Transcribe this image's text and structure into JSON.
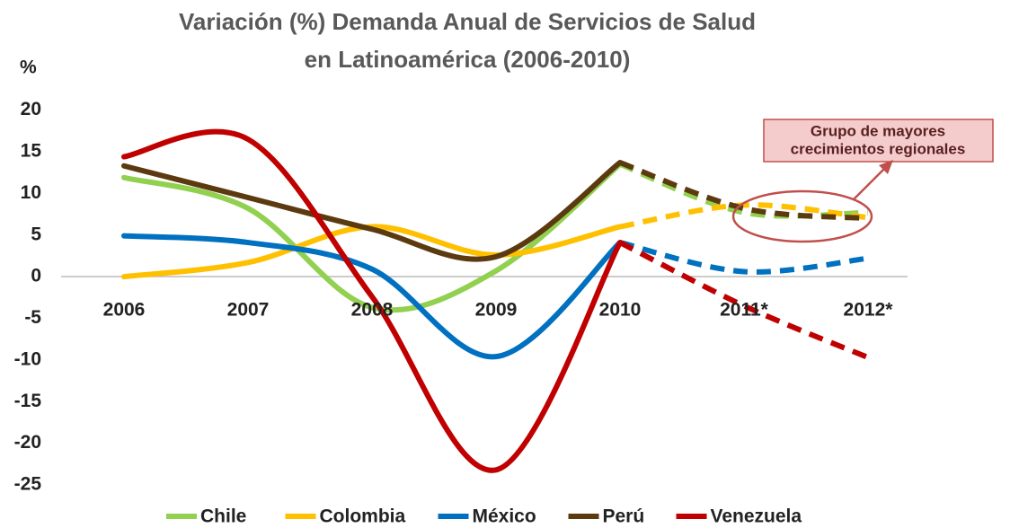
{
  "chart_data": {
    "type": "line",
    "title": [
      "Variación (%) Demanda Anual de Servicios de Salud",
      "en Latinoamérica (2006-2010)"
    ],
    "y_label": "%",
    "categories": [
      "2006",
      "2007",
      "2008",
      "2009",
      "2010",
      "2011*",
      "2012*"
    ],
    "series": [
      {
        "name": "Chile",
        "color": "#92d050",
        "values": [
          11.9,
          8.2,
          -3.7,
          0.7,
          13.5,
          7.7,
          7.7
        ]
      },
      {
        "name": "Colombia",
        "color": "#ffc000",
        "values": [
          0,
          1.7,
          6,
          2.6,
          6,
          8.6,
          7.1
        ]
      },
      {
        "name": "México",
        "color": "#0070c0",
        "values": [
          4.9,
          4.1,
          0.9,
          -9.6,
          4.1,
          0.6,
          2.2
        ]
      },
      {
        "name": "Perú",
        "color": "#5c3a10",
        "values": [
          13.3,
          9.5,
          5.7,
          2.4,
          13.7,
          8.2,
          7.0
        ]
      },
      {
        "name": "Venezuela",
        "color": "#c00000",
        "values": [
          14.4,
          16.5,
          -2.4,
          -23.2,
          4.1,
          -3.5,
          -9.7
        ]
      }
    ],
    "ylim": [
      -25,
      20
    ],
    "yticks": [
      20,
      15,
      10,
      5,
      0,
      -5,
      -10,
      -15,
      -20,
      -25
    ],
    "annotation": [
      "Grupo de mayores",
      "crecimientos regionales"
    ],
    "legend": "bottom"
  }
}
